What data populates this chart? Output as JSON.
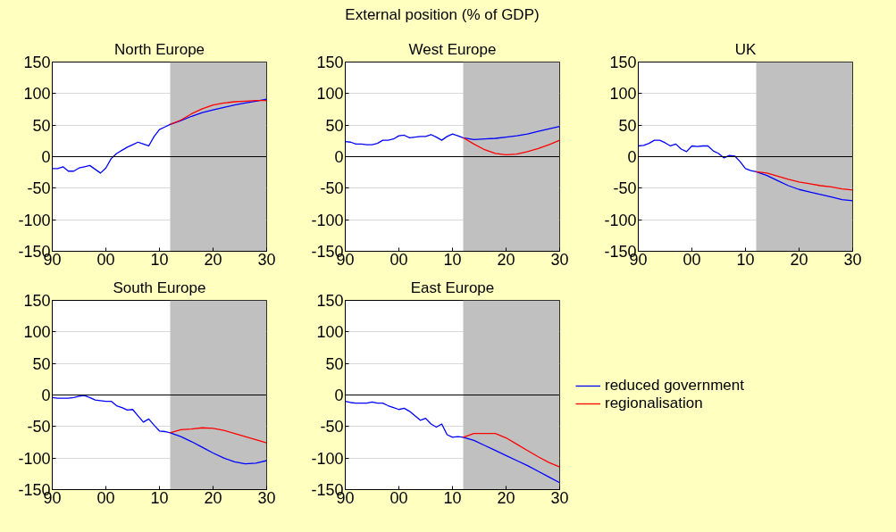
{
  "chart_data": [
    {
      "type": "line",
      "title": "North Europe",
      "annotations": [
        "External position (% of GDP)"
      ],
      "xlim": [
        1990,
        2030
      ],
      "ylim": [
        -150,
        150
      ],
      "xticks": [
        {
          "value": 1990,
          "label": "90"
        },
        {
          "value": 2000,
          "label": "00"
        },
        {
          "value": 2010,
          "label": "10"
        },
        {
          "value": 2020,
          "label": "20"
        },
        {
          "value": 2030,
          "label": "30"
        }
      ],
      "yticks": [
        -150,
        -100,
        -50,
        0,
        50,
        100,
        150
      ],
      "grid": "y",
      "legend": false,
      "ref_lines": [
        {
          "axis": "y",
          "value": 0,
          "color": "#000000"
        }
      ],
      "bands": [
        {
          "axis": "x",
          "from": 2012,
          "to": 2030,
          "color": "#c0c0c0"
        }
      ],
      "series": [
        {
          "color": "#0000ff",
          "x": [
            1990,
            1991,
            1992,
            1993,
            1994,
            1995,
            1996,
            1997,
            1998,
            1999,
            2000,
            2001,
            2002,
            2003,
            2004,
            2005,
            2006,
            2007,
            2008,
            2009,
            2010,
            2011,
            2012,
            2014,
            2016,
            2018,
            2020,
            2022,
            2024,
            2026,
            2028,
            2030
          ],
          "values": [
            -19,
            -19,
            -16,
            -23,
            -23,
            -18,
            -16,
            -14,
            -20,
            -26,
            -18,
            -3,
            5,
            10,
            15,
            19,
            23,
            20,
            17,
            32,
            43,
            47,
            51,
            57,
            64,
            70,
            74,
            78,
            82,
            85,
            88,
            91
          ]
        },
        {
          "color": "#ff0000",
          "x": [
            2012,
            2014,
            2016,
            2018,
            2020,
            2022,
            2024,
            2026,
            2028,
            2030
          ],
          "values": [
            51,
            58,
            68,
            76,
            82,
            85,
            87,
            88,
            89,
            89
          ]
        }
      ]
    },
    {
      "type": "line",
      "title": "West Europe",
      "xlim": [
        1990,
        2030
      ],
      "ylim": [
        -150,
        150
      ],
      "xticks": [
        {
          "value": 1990,
          "label": "90"
        },
        {
          "value": 2000,
          "label": "00"
        },
        {
          "value": 2010,
          "label": "10"
        },
        {
          "value": 2020,
          "label": "20"
        },
        {
          "value": 2030,
          "label": "30"
        }
      ],
      "yticks": [
        -150,
        -100,
        -50,
        0,
        50,
        100,
        150
      ],
      "grid": "y",
      "legend": false,
      "ref_lines": [
        {
          "axis": "y",
          "value": 0,
          "color": "#000000"
        }
      ],
      "bands": [
        {
          "axis": "x",
          "from": 2012,
          "to": 2030,
          "color": "#c0c0c0"
        }
      ],
      "series": [
        {
          "color": "#0000ff",
          "x": [
            1990,
            1991,
            1992,
            1993,
            1994,
            1995,
            1996,
            1997,
            1998,
            1999,
            2000,
            2001,
            2002,
            2003,
            2004,
            2005,
            2006,
            2007,
            2008,
            2009,
            2010,
            2011,
            2012,
            2014,
            2016,
            2018,
            2020,
            2022,
            2024,
            2026,
            2028,
            2030
          ],
          "values": [
            24,
            23,
            20,
            20,
            19,
            19,
            21,
            26,
            26,
            28,
            33,
            34,
            30,
            31,
            32,
            32,
            35,
            31,
            26,
            32,
            36,
            33,
            30,
            27,
            28,
            29,
            31,
            33,
            36,
            40,
            44,
            48
          ]
        },
        {
          "color": "#ff0000",
          "x": [
            2012,
            2014,
            2016,
            2018,
            2020,
            2022,
            2024,
            2026,
            2028,
            2030
          ],
          "values": [
            30,
            20,
            11,
            5,
            3,
            4,
            8,
            13,
            19,
            26
          ]
        }
      ]
    },
    {
      "type": "line",
      "title": "UK",
      "xlim": [
        1990,
        2030
      ],
      "ylim": [
        -150,
        150
      ],
      "xticks": [
        {
          "value": 1990,
          "label": "90"
        },
        {
          "value": 2000,
          "label": "00"
        },
        {
          "value": 2010,
          "label": "10"
        },
        {
          "value": 2020,
          "label": "20"
        },
        {
          "value": 2030,
          "label": "30"
        }
      ],
      "yticks": [
        -150,
        -100,
        -50,
        0,
        50,
        100,
        150
      ],
      "grid": "y",
      "legend": false,
      "ref_lines": [
        {
          "axis": "y",
          "value": 0,
          "color": "#000000"
        }
      ],
      "bands": [
        {
          "axis": "x",
          "from": 2012,
          "to": 2030,
          "color": "#c0c0c0"
        }
      ],
      "series": [
        {
          "color": "#0000ff",
          "x": [
            1990,
            1991,
            1992,
            1993,
            1994,
            1995,
            1996,
            1997,
            1998,
            1999,
            2000,
            2001,
            2002,
            2003,
            2004,
            2005,
            2006,
            2007,
            2008,
            2009,
            2010,
            2011,
            2012,
            2014,
            2016,
            2018,
            2020,
            2022,
            2024,
            2026,
            2028,
            2030
          ],
          "values": [
            17,
            18,
            21,
            26,
            26,
            22,
            17,
            20,
            12,
            8,
            17,
            16,
            17,
            17,
            9,
            5,
            -2,
            2,
            1,
            -8,
            -19,
            -22,
            -24,
            -30,
            -38,
            -46,
            -52,
            -56,
            -60,
            -64,
            -68,
            -70
          ]
        },
        {
          "color": "#ff0000",
          "x": [
            2012,
            2014,
            2016,
            2018,
            2020,
            2022,
            2024,
            2026,
            2028,
            2030
          ],
          "values": [
            -24,
            -26,
            -31,
            -36,
            -40,
            -43,
            -46,
            -48,
            -51,
            -53
          ]
        }
      ]
    },
    {
      "type": "line",
      "title": "South Europe",
      "xlim": [
        1990,
        2030
      ],
      "ylim": [
        -150,
        150
      ],
      "xticks": [
        {
          "value": 1990,
          "label": "90"
        },
        {
          "value": 2000,
          "label": "00"
        },
        {
          "value": 2010,
          "label": "10"
        },
        {
          "value": 2020,
          "label": "20"
        },
        {
          "value": 2030,
          "label": "30"
        }
      ],
      "yticks": [
        -150,
        -100,
        -50,
        0,
        50,
        100,
        150
      ],
      "grid": "y",
      "legend": false,
      "ref_lines": [
        {
          "axis": "y",
          "value": 0,
          "color": "#000000"
        }
      ],
      "bands": [
        {
          "axis": "x",
          "from": 2012,
          "to": 2030,
          "color": "#c0c0c0"
        }
      ],
      "series": [
        {
          "color": "#0000ff",
          "x": [
            1990,
            1991,
            1992,
            1993,
            1994,
            1995,
            1996,
            1997,
            1998,
            1999,
            2000,
            2001,
            2002,
            2003,
            2004,
            2005,
            2006,
            2007,
            2008,
            2009,
            2010,
            2011,
            2012,
            2014,
            2016,
            2018,
            2020,
            2022,
            2024,
            2026,
            2028,
            2030
          ],
          "values": [
            -4,
            -5,
            -5,
            -5,
            -4,
            -2,
            -1,
            -4,
            -8,
            -9,
            -10,
            -10,
            -17,
            -20,
            -24,
            -23,
            -33,
            -43,
            -38,
            -48,
            -57,
            -58,
            -60,
            -66,
            -74,
            -83,
            -92,
            -100,
            -106,
            -109,
            -108,
            -104
          ]
        },
        {
          "color": "#ff0000",
          "x": [
            2012,
            2014,
            2016,
            2018,
            2020,
            2022,
            2024,
            2026,
            2028,
            2030
          ],
          "values": [
            -60,
            -55,
            -54,
            -52,
            -53,
            -56,
            -61,
            -66,
            -71,
            -76
          ]
        }
      ]
    },
    {
      "type": "line",
      "title": "East Europe",
      "xlim": [
        1990,
        2030
      ],
      "ylim": [
        -150,
        150
      ],
      "xticks": [
        {
          "value": 1990,
          "label": "90"
        },
        {
          "value": 2000,
          "label": "00"
        },
        {
          "value": 2010,
          "label": "10"
        },
        {
          "value": 2020,
          "label": "20"
        },
        {
          "value": 2030,
          "label": "30"
        }
      ],
      "yticks": [
        -150,
        -100,
        -50,
        0,
        50,
        100,
        150
      ],
      "grid": "y",
      "legend": "right",
      "ref_lines": [
        {
          "axis": "y",
          "value": 0,
          "color": "#000000"
        }
      ],
      "bands": [
        {
          "axis": "x",
          "from": 2012,
          "to": 2030,
          "color": "#c0c0c0"
        }
      ],
      "series": [
        {
          "name": "reduced government",
          "color": "#0000ff",
          "x": [
            1990,
            1991,
            1992,
            1993,
            1994,
            1995,
            1996,
            1997,
            1998,
            1999,
            2000,
            2001,
            2002,
            2003,
            2004,
            2005,
            2006,
            2007,
            2008,
            2009,
            2010,
            2011,
            2012,
            2014,
            2016,
            2018,
            2020,
            2022,
            2024,
            2026,
            2028,
            2030
          ],
          "values": [
            -10,
            -12,
            -13,
            -13,
            -13,
            -11,
            -13,
            -13,
            -17,
            -20,
            -23,
            -21,
            -26,
            -33,
            -40,
            -37,
            -46,
            -51,
            -46,
            -63,
            -67,
            -66,
            -67,
            -72,
            -80,
            -88,
            -96,
            -104,
            -112,
            -121,
            -130,
            -139
          ]
        },
        {
          "name": "regionalisation",
          "color": "#ff0000",
          "x": [
            2012,
            2014,
            2016,
            2018,
            2020,
            2022,
            2024,
            2026,
            2028,
            2030
          ],
          "values": [
            -67,
            -61,
            -61,
            -61,
            -68,
            -78,
            -88,
            -98,
            -107,
            -114
          ]
        }
      ]
    }
  ]
}
